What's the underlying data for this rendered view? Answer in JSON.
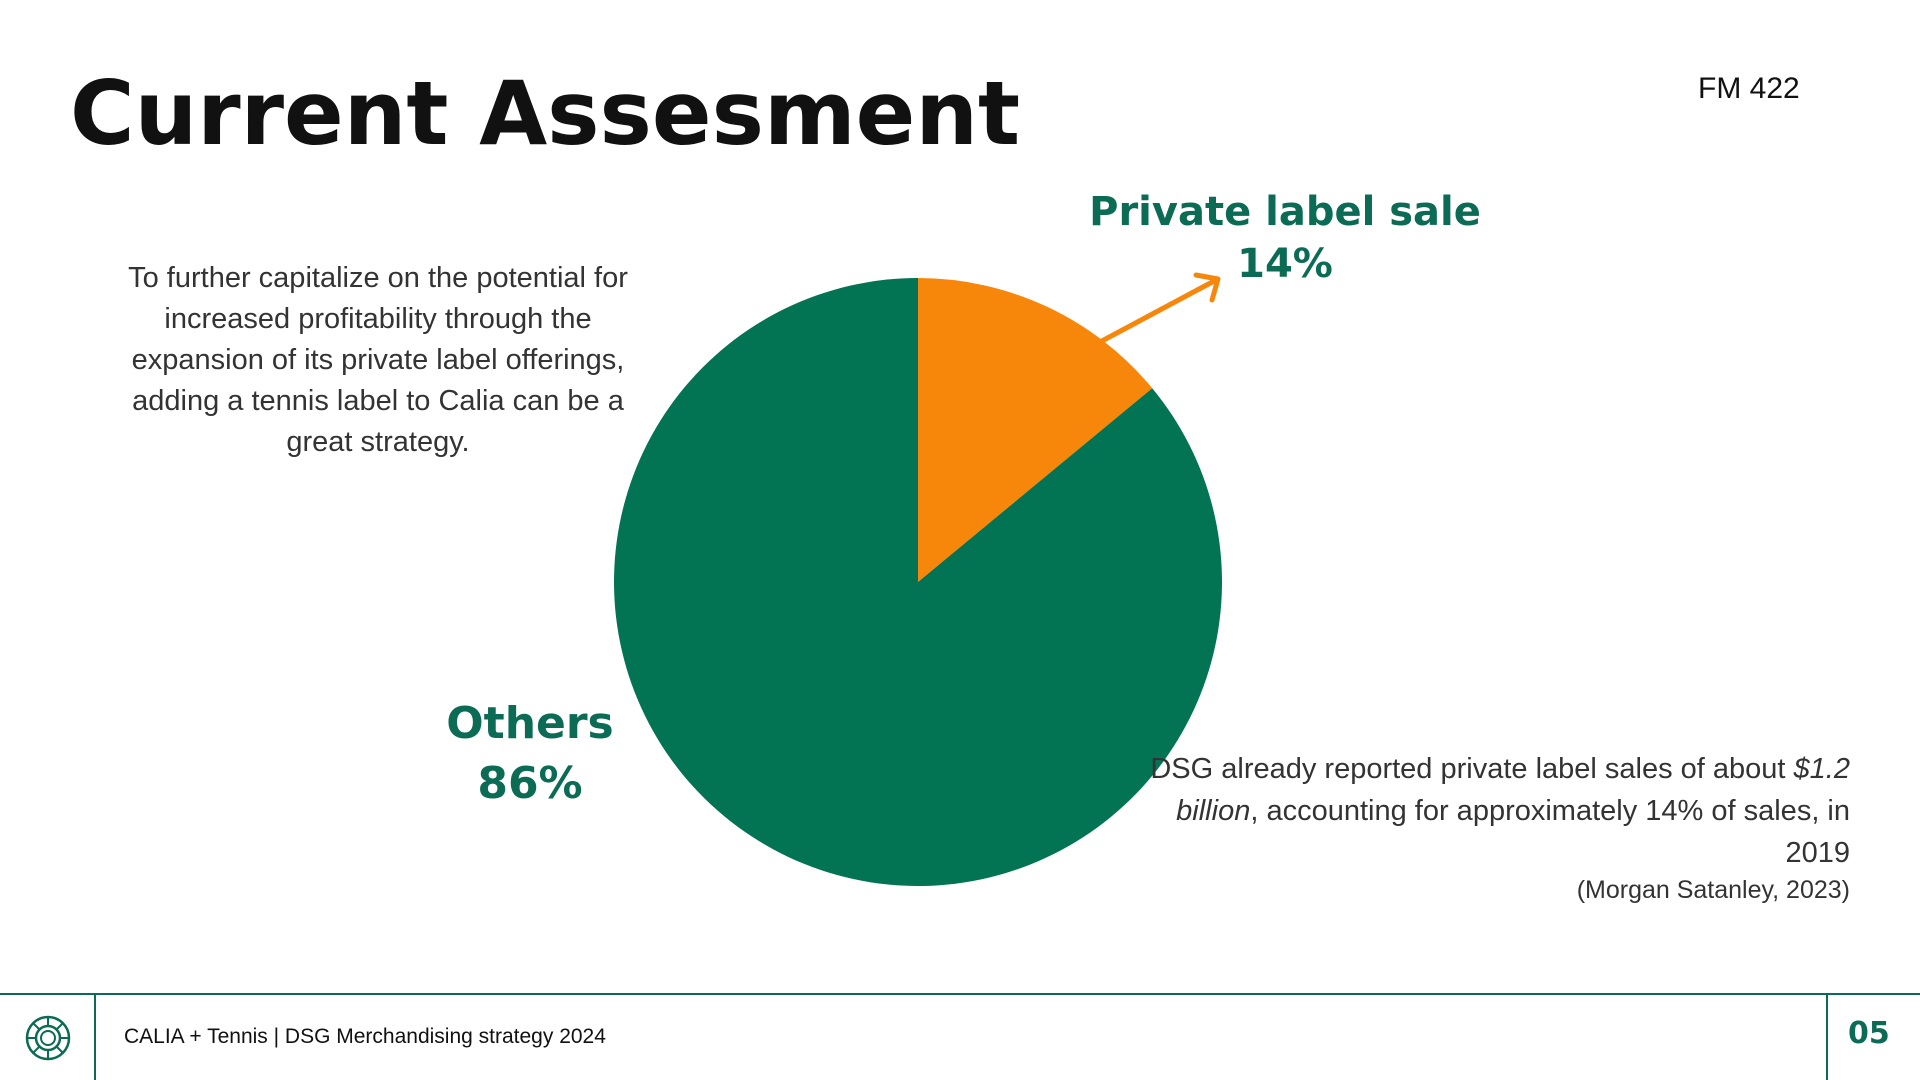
{
  "slide": {
    "title": "Current Assesment",
    "course": "FM 422",
    "intro_text": "To further capitalize on the potential for increased profitability through the expansion of its private label offerings, adding a tennis label to Calia can be a great strategy.",
    "note_prefix": "DSG already reported private label sales of about ",
    "note_emphasis": "$1.2 billion",
    "note_suffix": ", accounting for approximately 14% of sales, in 2019",
    "citation": "(Morgan Satanley, 2023)"
  },
  "chart_data": {
    "type": "pie",
    "categories": [
      "Private label sale",
      "Others"
    ],
    "values": [
      14,
      86
    ],
    "labels": [
      "14%",
      "86%"
    ],
    "colors": [
      "#f7870a",
      "#037453"
    ],
    "title": ""
  },
  "footer": {
    "text": "CALIA + Tennis | DSG Merchandising strategy 2024",
    "page_number": "05",
    "logo_icon": "sun-emblem-icon",
    "accent_color": "#0b6b55"
  }
}
